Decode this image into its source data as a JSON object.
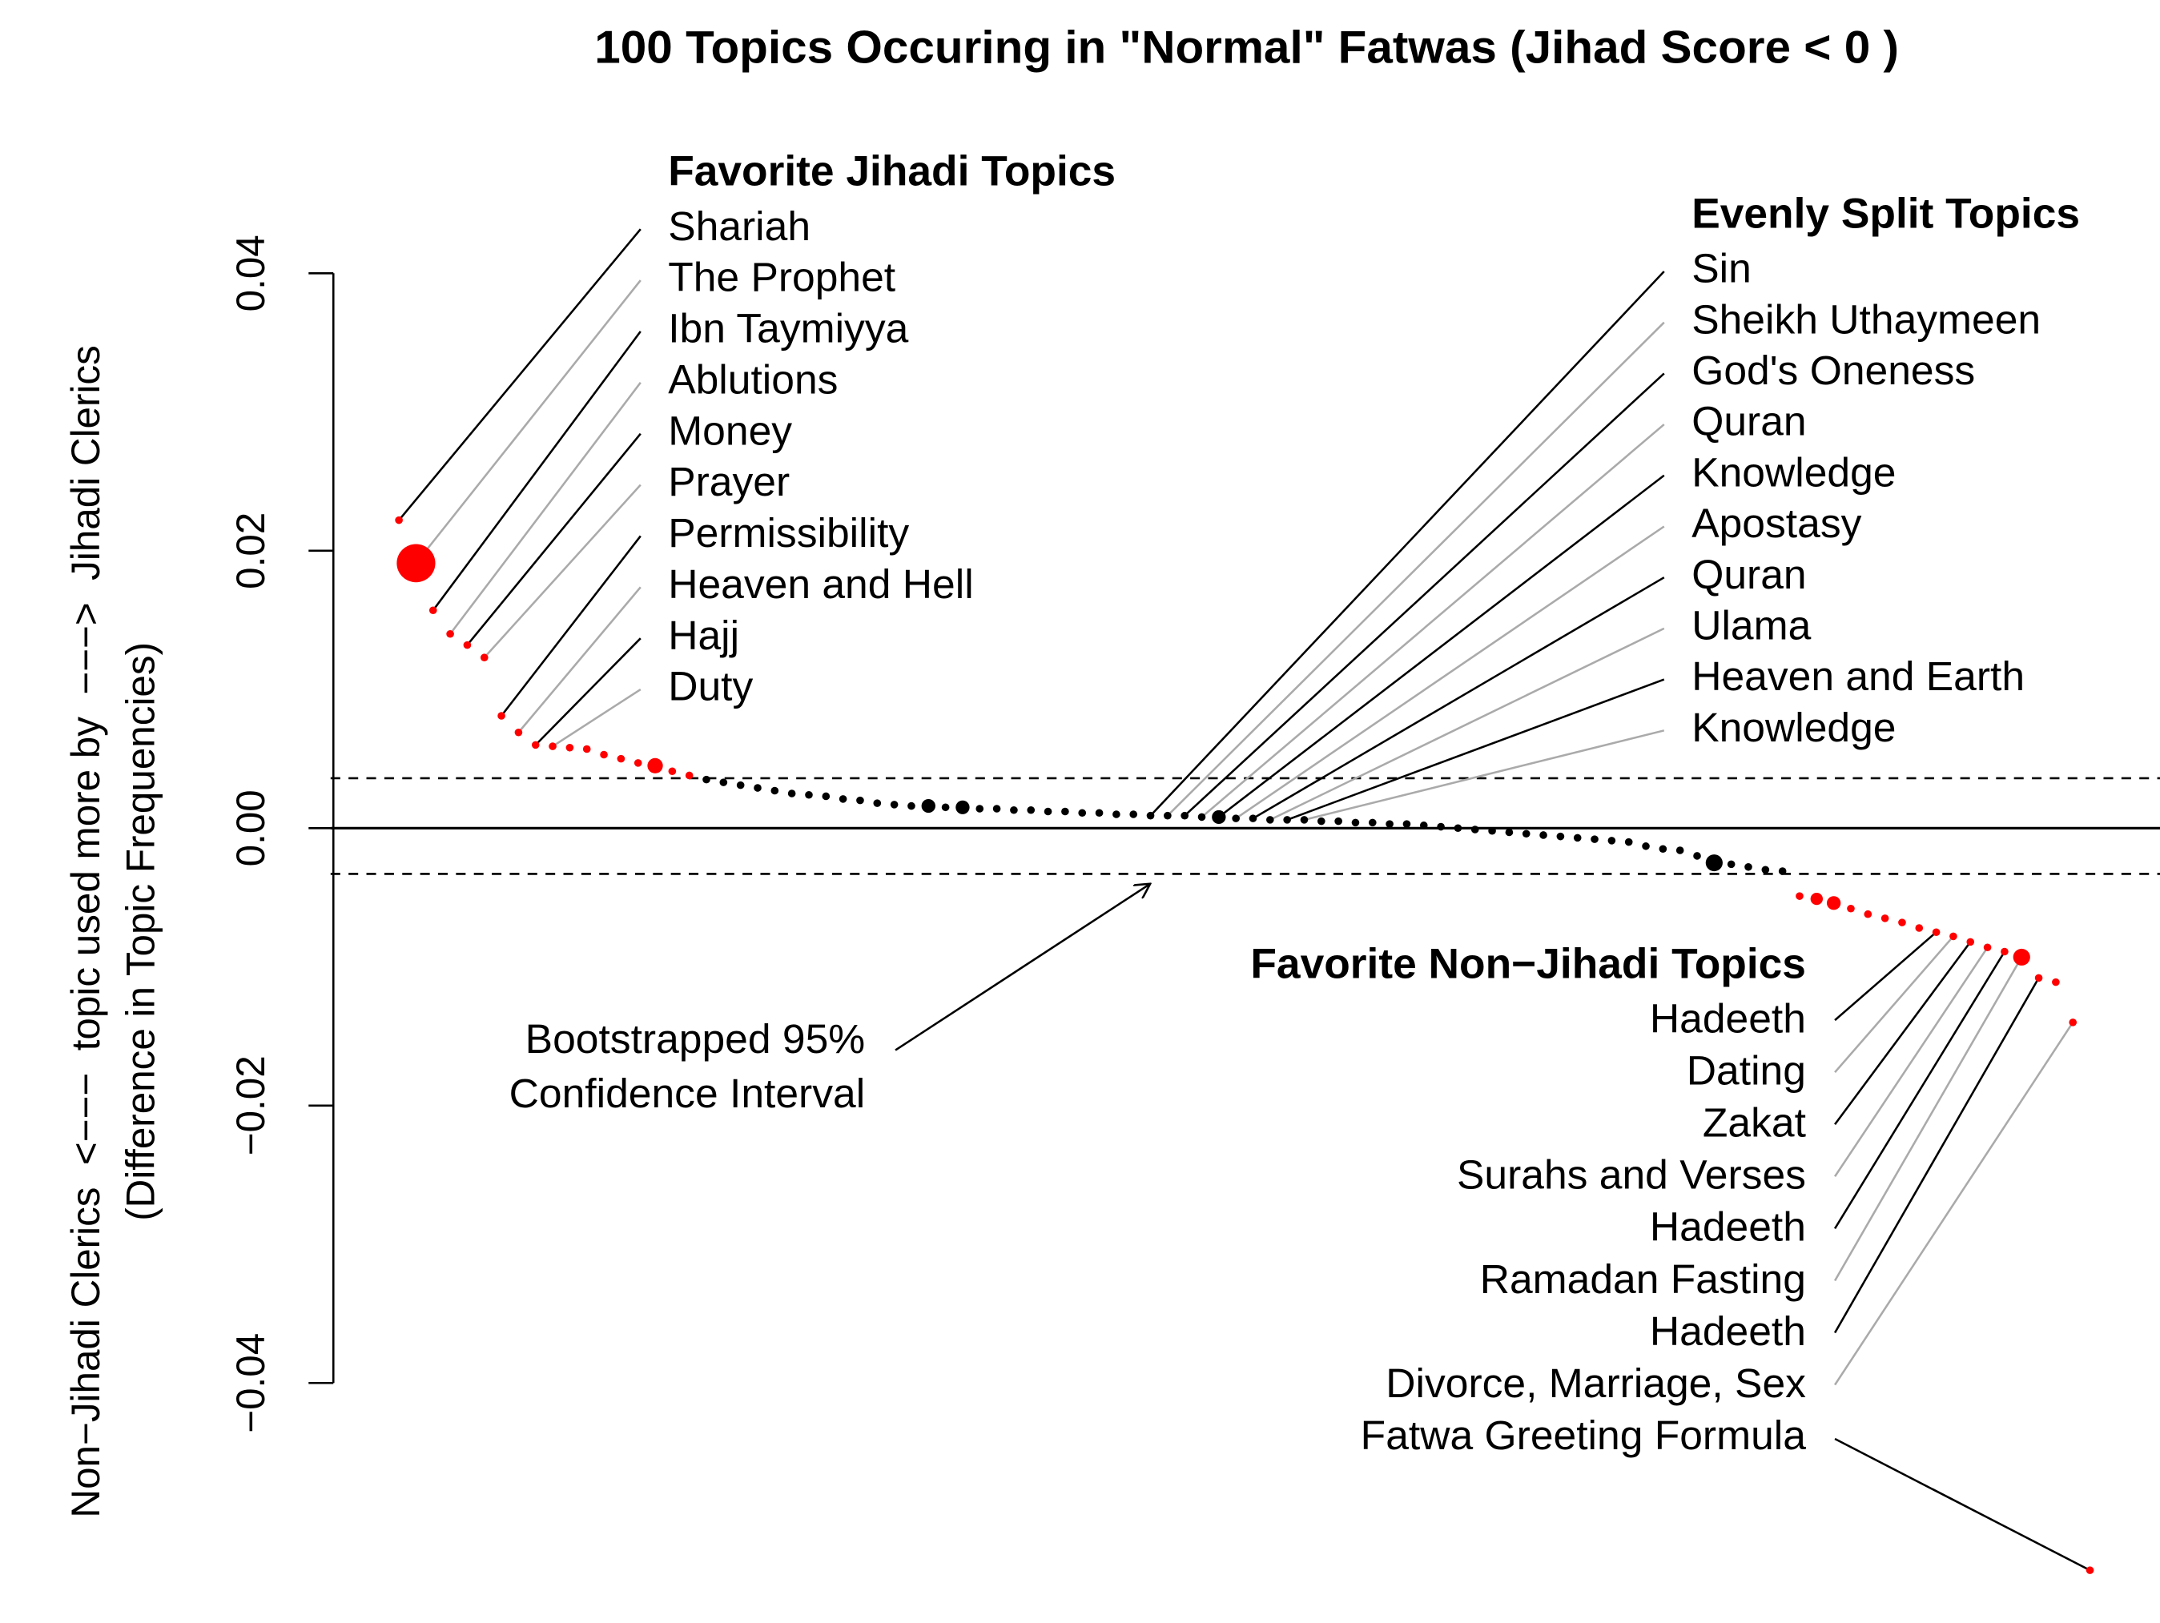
{
  "chart_data": {
    "type": "scatter",
    "title": "100 Topics Occuring in \"Normal\" Fatwas (Jihad Score < 0 )",
    "ylabel": [
      "Non−Jihadi Clerics  <−−−  topic used more by  −−−>  Jihadi Clerics",
      "(Difference in Topic Frequencies)"
    ],
    "x": [
      1,
      2,
      3,
      4,
      5,
      6,
      7,
      8,
      9,
      10,
      11,
      12,
      13,
      14,
      15,
      16,
      17,
      18,
      19,
      20,
      21,
      22,
      23,
      24,
      25,
      26,
      27,
      28,
      29,
      30,
      31,
      32,
      33,
      34,
      35,
      36,
      37,
      38,
      39,
      40,
      41,
      42,
      43,
      44,
      45,
      46,
      47,
      48,
      49,
      50,
      51,
      52,
      53,
      54,
      55,
      56,
      57,
      58,
      59,
      60,
      61,
      62,
      63,
      64,
      65,
      66,
      67,
      68,
      69,
      70,
      71,
      72,
      73,
      74,
      75,
      76,
      77,
      78,
      79,
      80,
      81,
      82,
      83,
      84,
      85,
      86,
      87,
      88,
      89,
      90,
      91,
      92,
      93,
      94,
      95,
      96,
      97,
      98,
      99,
      100
    ],
    "y": [
      0.0222,
      0.0191,
      0.0157,
      0.014,
      0.0132,
      0.0123,
      0.0081,
      0.0069,
      0.006,
      0.0059,
      0.0058,
      0.0057,
      0.0053,
      0.005,
      0.0047,
      0.0045,
      0.0041,
      0.0038,
      0.0035,
      0.0033,
      0.0031,
      0.0029,
      0.0027,
      0.0025,
      0.0024,
      0.0023,
      0.0021,
      0.002,
      0.0018,
      0.0017,
      0.0016,
      0.0016,
      0.0015,
      0.0015,
      0.0014,
      0.0014,
      0.0013,
      0.0013,
      0.0012,
      0.0012,
      0.0011,
      0.0011,
      0.001,
      0.001,
      0.0009,
      0.0009,
      0.0009,
      0.0008,
      0.0008,
      0.0007,
      0.0007,
      0.0006,
      0.0006,
      0.0006,
      0.0005,
      0.0005,
      0.0004,
      0.0004,
      0.0003,
      0.0003,
      0.0002,
      0.0001,
      0,
      -0.0001,
      -0.0002,
      -0.0003,
      -0.0004,
      -0.0005,
      -0.0006,
      -0.0007,
      -0.0008,
      -0.0009,
      -0.001,
      -0.0013,
      -0.0015,
      -0.0016,
      -0.002,
      -0.0025,
      -0.0026,
      -0.0028,
      -0.003,
      -0.0031,
      -0.0049,
      -0.0051,
      -0.0054,
      -0.0058,
      -0.0062,
      -0.0065,
      -0.0068,
      -0.0072,
      -0.0075,
      -0.0078,
      -0.0082,
      -0.0086,
      -0.0089,
      -0.0093,
      -0.0108,
      -0.0111,
      -0.014,
      -0.0535
    ],
    "sizes": [
      1,
      5,
      1,
      1,
      1,
      1,
      1,
      1,
      1,
      1,
      1,
      1,
      1,
      1,
      1,
      2,
      1,
      1,
      1,
      1,
      1,
      1,
      1,
      1,
      1,
      1,
      1,
      1,
      1,
      1,
      1,
      1.8,
      1,
      1.8,
      1,
      1,
      1,
      1,
      1,
      1,
      1,
      1,
      1,
      1,
      1,
      1,
      1,
      1,
      1.8,
      1,
      1,
      1,
      1,
      1,
      1,
      1,
      1,
      1,
      1,
      1,
      1,
      1,
      1,
      1,
      1,
      1,
      1,
      1,
      1,
      1,
      1,
      1,
      1,
      1,
      1,
      1,
      1,
      2.2,
      1,
      1,
      1,
      1,
      1,
      1.6,
      1.8,
      1,
      1,
      1,
      1,
      1,
      1,
      1,
      1,
      1,
      1,
      2.2,
      1,
      1,
      1,
      1
    ],
    "xlim": [
      -3,
      104.1
    ],
    "ylim": [
      -0.0573,
      0.0597
    ],
    "yticks": [
      {
        "value": -0.04,
        "label": "−0.04"
      },
      {
        "value": -0.02,
        "label": "−0.02"
      },
      {
        "value": 0,
        "label": "0.00"
      },
      0.02,
      0.04
    ],
    "ci": {
      "lower": -0.0033,
      "upper": 0.0036,
      "label": [
        "Bootstrapped 95%",
        "Confidence Interval"
      ]
    },
    "colors": {
      "inside": "#000000",
      "outside": "#ff0000"
    },
    "annotations": [
      {
        "title": "Favorite Jihadi Topics",
        "labels": [
          "Shariah",
          "The Prophet",
          "Ibn Taymiyya",
          "Ablutions",
          "Money",
          "Prayer",
          "Permissibility",
          "Heaven and Hell",
          "Hajj",
          "Duty"
        ]
      },
      {
        "title": "Evenly Split Topics",
        "labels": [
          "Sin",
          "Sheikh Uthaymeen",
          "God's Oneness",
          "Quran",
          "Knowledge",
          "Apostasy",
          "Quran",
          "Ulama",
          "Heaven and Earth",
          "Knowledge"
        ]
      },
      {
        "title": "Favorite Non−Jihadi Topics",
        "labels": [
          "Hadeeth",
          "Dating",
          "Zakat",
          "Surahs and Verses",
          "Hadeeth",
          "Ramadan Fasting",
          "Hadeeth",
          "Divorce, Marriage, Sex",
          "Fatwa Greeting Formula"
        ]
      }
    ]
  }
}
